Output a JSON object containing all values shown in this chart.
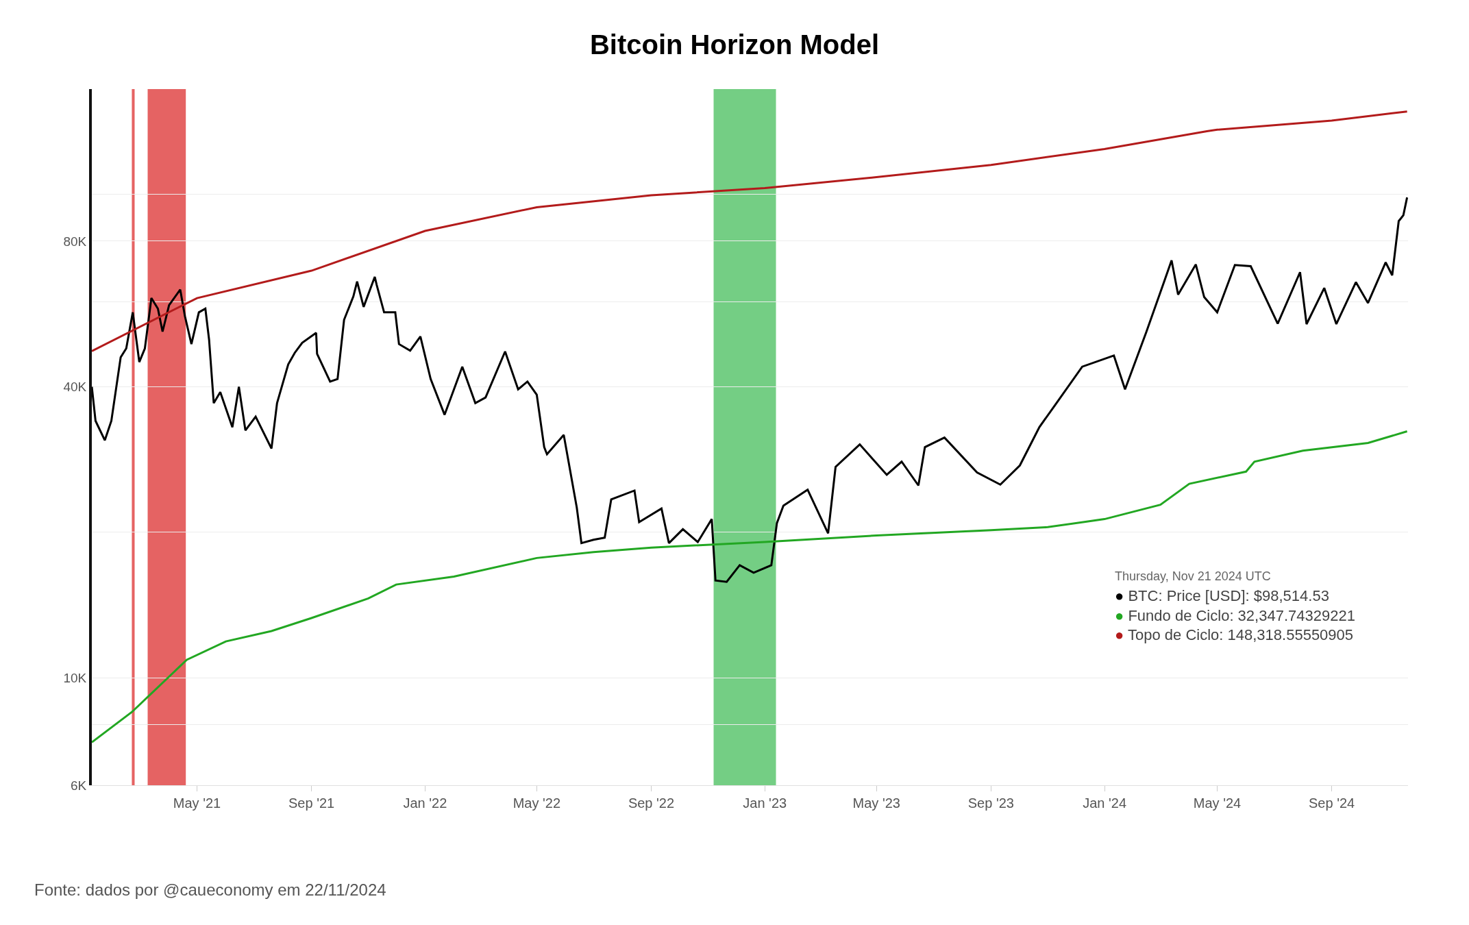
{
  "chart_data": {
    "type": "line",
    "title": "Bitcoin Horizon Model",
    "x": [
      "2021-01-08",
      "2021-01-12",
      "2021-01-22",
      "2021-01-29",
      "2021-02-08",
      "2021-02-14",
      "2021-02-21",
      "2021-02-28",
      "2021-03-06",
      "2021-03-13",
      "2021-03-20",
      "2021-03-25",
      "2021-04-01",
      "2021-04-13",
      "2021-04-18",
      "2021-04-25",
      "2021-05-03",
      "2021-05-10",
      "2021-05-14",
      "2021-05-19",
      "2021-05-26",
      "2021-06-08",
      "2021-06-15",
      "2021-06-22",
      "2021-07-03",
      "2021-07-20",
      "2021-07-26",
      "2021-08-07",
      "2021-08-14",
      "2021-08-22",
      "2021-09-06",
      "2021-09-07",
      "2021-09-21",
      "2021-09-29",
      "2021-10-06",
      "2021-10-16",
      "2021-10-20",
      "2021-10-27",
      "2021-11-08",
      "2021-11-10",
      "2021-11-18",
      "2021-11-30",
      "2021-12-04",
      "2021-12-16",
      "2021-12-27",
      "2022-01-07",
      "2022-01-22",
      "2022-02-10",
      "2022-02-24",
      "2022-03-07",
      "2022-03-28",
      "2022-04-11",
      "2022-04-21",
      "2022-05-01",
      "2022-05-09",
      "2022-05-12",
      "2022-05-30",
      "2022-06-13",
      "2022-06-18",
      "2022-07-01",
      "2022-07-13",
      "2022-07-20",
      "2022-08-14",
      "2022-08-19",
      "2022-09-12",
      "2022-09-20",
      "2022-10-05",
      "2022-10-21",
      "2022-11-05",
      "2022-11-09",
      "2022-11-21",
      "2022-12-05",
      "2022-12-20",
      "2023-01-08",
      "2023-01-14",
      "2023-01-21",
      "2023-02-16",
      "2023-03-10",
      "2023-03-18",
      "2023-04-13",
      "2023-05-12",
      "2023-05-28",
      "2023-06-15",
      "2023-06-22",
      "2023-07-13",
      "2023-08-17",
      "2023-09-11",
      "2023-10-02",
      "2023-10-23",
      "2023-11-09",
      "2023-12-08",
      "2024-01-11",
      "2024-01-23",
      "2024-02-15",
      "2024-03-05",
      "2024-03-13",
      "2024-03-20",
      "2024-04-08",
      "2024-04-17",
      "2024-05-01",
      "2024-05-20",
      "2024-06-06",
      "2024-07-05",
      "2024-07-29",
      "2024-08-05",
      "2024-08-24",
      "2024-09-06",
      "2024-09-27",
      "2024-10-10",
      "2024-10-29",
      "2024-11-05",
      "2024-11-12",
      "2024-11-17",
      "2024-11-21"
    ],
    "series": [
      {
        "color": "#000000",
        "values": [
          40000,
          34000,
          31000,
          34000,
          46000,
          48000,
          57000,
          45000,
          48000,
          61000,
          58000,
          52000,
          59000,
          63500,
          56000,
          49000,
          57000,
          58000,
          50000,
          37000,
          39000,
          33000,
          40000,
          32500,
          34700,
          29800,
          37000,
          44500,
          47000,
          49300,
          51700,
          46800,
          41000,
          41500,
          55000,
          61500,
          66000,
          58500,
          67500,
          65000,
          57000,
          57000,
          49000,
          47500,
          50800,
          41500,
          35000,
          44000,
          37000,
          38000,
          47300,
          39500,
          41000,
          38500,
          30000,
          29000,
          31800,
          22500,
          19000,
          19300,
          19500,
          23400,
          24400,
          21000,
          22400,
          19000,
          20300,
          19100,
          21300,
          15900,
          15800,
          17100,
          16500,
          17100,
          20900,
          22700,
          24500,
          19900,
          27300,
          30400,
          26300,
          28000,
          25000,
          30000,
          31400,
          26600,
          25100,
          27500,
          33000,
          36700,
          44000,
          46400,
          39500,
          52000,
          66000,
          73000,
          62000,
          71600,
          61300,
          57000,
          71400,
          71000,
          54000,
          69000,
          53900,
          64000,
          53900,
          65800,
          59600,
          72300,
          68000,
          88000,
          90500,
          98514.53
        ]
      },
      {
        "color": "#22a722",
        "x": [
          "2021-01-08",
          "2021-02-20",
          "2021-04-20",
          "2021-06-01",
          "2021-07-20",
          "2021-09-01",
          "2021-11-01",
          "2021-12-01",
          "2022-02-01",
          "2022-05-01",
          "2022-07-01",
          "2022-09-01",
          "2023-01-01",
          "2023-05-01",
          "2023-09-01",
          "2023-11-01",
          "2024-01-01",
          "2024-03-01",
          "2024-04-01",
          "2024-06-01",
          "2024-06-10",
          "2024-08-01",
          "2024-10-10",
          "2024-11-21"
        ],
        "values": [
          7360,
          8500,
          10900,
          11900,
          12500,
          13300,
          14600,
          15600,
          16200,
          17700,
          18200,
          18600,
          19100,
          19700,
          20200,
          20500,
          21300,
          22800,
          25200,
          26700,
          28000,
          29500,
          30600,
          32347.74
        ]
      },
      {
        "color": "#b31b1b",
        "x": [
          "2021-01-08",
          "2021-05-01",
          "2021-09-01",
          "2022-01-01",
          "2022-05-01",
          "2022-09-01",
          "2023-01-01",
          "2023-05-01",
          "2023-09-01",
          "2024-01-01",
          "2024-04-20",
          "2024-05-01",
          "2024-09-01",
          "2024-11-21"
        ],
        "values": [
          47400,
          61000,
          69500,
          84000,
          94000,
          99500,
          103000,
          108500,
          115000,
          124000,
          135000,
          136000,
          142000,
          148318.56
        ]
      }
    ],
    "log": "y",
    "ylim": [
      6000,
      165000
    ],
    "yticks": [
      {
        "value": 6000,
        "label": "6K"
      },
      {
        "value": 8000,
        "label": null
      },
      {
        "value": 10000,
        "label": "10K"
      },
      {
        "value": 20000,
        "label": null
      },
      {
        "value": 40000,
        "label": "40K"
      },
      {
        "value": 60000,
        "label": null
      },
      {
        "value": 80000,
        "label": "80K"
      },
      {
        "value": 100000,
        "label": null
      }
    ],
    "xlim": [
      "2021-01-08",
      "2024-11-22"
    ],
    "xticks": [
      {
        "value": "2021-05-01",
        "label": "May '21"
      },
      {
        "value": "2021-09-01",
        "label": "Sep '21"
      },
      {
        "value": "2022-01-01",
        "label": "Jan '22"
      },
      {
        "value": "2022-05-01",
        "label": "May '22"
      },
      {
        "value": "2022-09-01",
        "label": "Sep '22"
      },
      {
        "value": "2023-01-01",
        "label": "Jan '23"
      },
      {
        "value": "2023-05-01",
        "label": "May '23"
      },
      {
        "value": "2023-09-01",
        "label": "Sep '23"
      },
      {
        "value": "2024-01-01",
        "label": "Jan '24"
      },
      {
        "value": "2024-05-01",
        "label": "May '24"
      },
      {
        "value": "2024-09-01",
        "label": "Sep '24"
      }
    ],
    "grid": "y",
    "bands": [
      {
        "axis": "x",
        "from": "2021-02-20",
        "to": "2021-02-23",
        "color": "#e04848"
      },
      {
        "axis": "x",
        "from": "2021-03-09",
        "to": "2021-04-19",
        "color": "#e04848"
      },
      {
        "axis": "x",
        "from": "2022-11-07",
        "to": "2023-01-13",
        "color": "#5cc66e"
      }
    ],
    "annotations": [
      "Thursday, Nov 21 2024 UTC",
      "● BTC: Price [USD]: $98,514.53",
      "● Fundo de Ciclo: 32,347.74329221",
      "● Topo de Ciclo: 148,318.55550905",
      "Fonte: dados por @caueconomy em 22/11/2024"
    ]
  }
}
